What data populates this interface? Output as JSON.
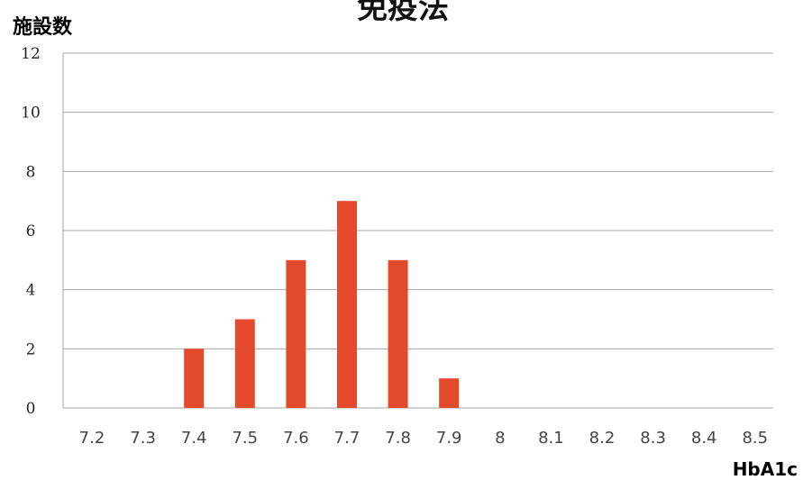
{
  "chart_data": {
    "type": "bar",
    "title": "免疫法",
    "ylabel": "施設数",
    "xlabel": "HbA1c",
    "categories": [
      "7.2",
      "7.3",
      "7.4",
      "7.5",
      "7.6",
      "7.7",
      "7.8",
      "7.9",
      "8",
      "8.1",
      "8.2",
      "8.3",
      "8.4",
      "8.5"
    ],
    "values": [
      0,
      0,
      2,
      3,
      5,
      7,
      5,
      1,
      0,
      0,
      0,
      0,
      0,
      0
    ],
    "ylim": [
      0,
      12
    ],
    "yticks": [
      "0",
      "2",
      "4",
      "6",
      "8",
      "10",
      "12"
    ],
    "grid": true,
    "bar_color": "#e3492b"
  }
}
